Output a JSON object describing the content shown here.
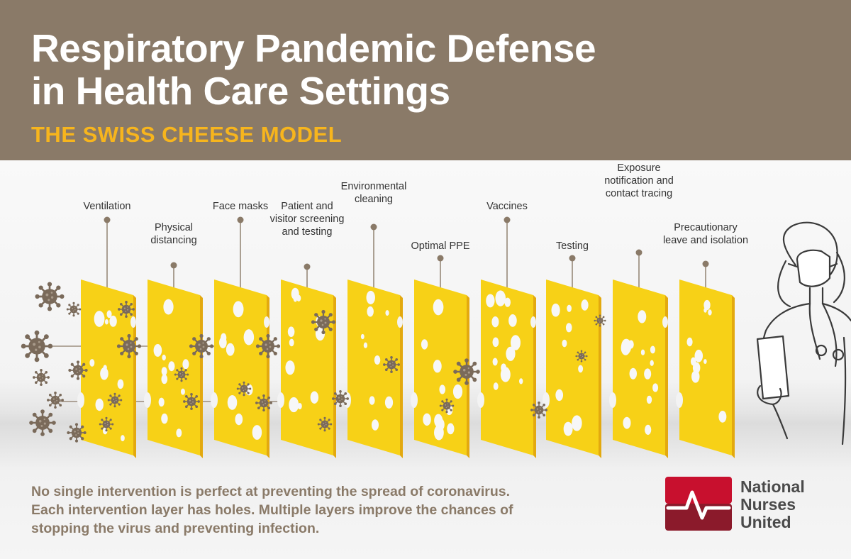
{
  "header": {
    "title_line1": "Respiratory Pandemic Defense",
    "title_line2": "in Health Care Settings",
    "subtitle": "THE SWISS CHEESE MODEL"
  },
  "layers": [
    {
      "lines": [
        "Ventilation"
      ]
    },
    {
      "lines": [
        "Physical",
        "distancing"
      ]
    },
    {
      "lines": [
        "Face masks"
      ]
    },
    {
      "lines": [
        "Patient and",
        "visitor screening",
        "and testing"
      ]
    },
    {
      "lines": [
        "Environmental",
        "cleaning"
      ]
    },
    {
      "lines": [
        "Optimal PPE"
      ]
    },
    {
      "lines": [
        "Vaccines"
      ]
    },
    {
      "lines": [
        "Testing"
      ]
    },
    {
      "lines": [
        "Exposure",
        "notification and",
        "contact tracing"
      ]
    },
    {
      "lines": [
        "Precautionary",
        "leave and isolation"
      ]
    }
  ],
  "footer": {
    "line1": "No single intervention is perfect at preventing the spread of coronavirus.",
    "line2": "Each intervention layer has holes. Multiple layers improve the chances of",
    "line3": "stopping the virus and preventing infection."
  },
  "logo": {
    "line1": "National",
    "line2": "Nurses",
    "line3": "United"
  },
  "colors": {
    "header_bg": "#8a7a68",
    "subtitle": "#f7b51d",
    "cheese": "#f7d117",
    "cheese_shadow": "#e3a90f",
    "virus": "#7a6a5a",
    "logo_red": "#c8102e",
    "logo_dark": "#8b1a2b"
  },
  "icons": [
    "virus-icon",
    "nurse-illustration",
    "nnu-logo-icon"
  ]
}
